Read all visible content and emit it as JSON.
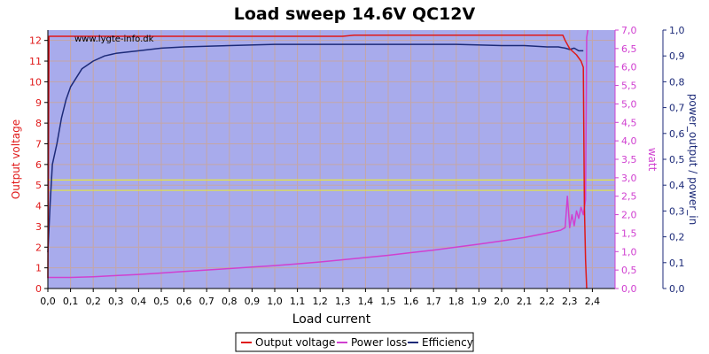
{
  "chart_data": {
    "type": "line",
    "title": "Load sweep 14.6V QC12V",
    "watermark": "www.lygte-info.dk",
    "xlabel": "Load current",
    "ylabel_left": "Output voltage",
    "ylabel_right1": "watt",
    "ylabel_right2": "power_output / power_in",
    "xlim": [
      0,
      2.5
    ],
    "ylim_left": [
      0,
      12.5
    ],
    "ylim_right1": [
      0,
      7.0
    ],
    "ylim_right2": [
      0,
      1.0
    ],
    "x_ticks": [
      "0,0",
      "0,1",
      "0,2",
      "0,3",
      "0,4",
      "0,5",
      "0,6",
      "0,7",
      "0,8",
      "0,9",
      "1,0",
      "1,1",
      "1,2",
      "1,3",
      "1,4",
      "1,5",
      "1,6",
      "1,7",
      "1,8",
      "1,9",
      "2,0",
      "2,1",
      "2,2",
      "2,3",
      "2,4"
    ],
    "y_left_ticks": [
      "0",
      "1",
      "2",
      "3",
      "4",
      "5",
      "6",
      "7",
      "8",
      "9",
      "10",
      "11",
      "12"
    ],
    "y_right1_ticks": [
      "0,0",
      "0,5",
      "1,0",
      "1,5",
      "2,0",
      "2,5",
      "3,0",
      "3,5",
      "4,0",
      "4,5",
      "5,0",
      "5,5",
      "6,0",
      "6,5",
      "7,0"
    ],
    "y_right2_ticks": [
      "0,0",
      "0,1",
      "0,2",
      "0,3",
      "0,4",
      "0,5",
      "0,6",
      "0,7",
      "0,8",
      "0,9",
      "1,0"
    ],
    "reference_lines_left": [
      4.75,
      5.25
    ],
    "colors": {
      "plot_bg": "#a8abec",
      "grid": "#c4a6a6",
      "output_voltage": "#e01818",
      "power_loss": "#d040d0",
      "efficiency": "#1c2a78",
      "reference": "#e6e63a",
      "left_axis": "#e01818",
      "right1_axis": "#d040d0",
      "right2_axis": "#1c2a78"
    },
    "series": [
      {
        "name": "Output voltage",
        "axis": "left",
        "color": "#e01818",
        "x": [
          0,
          0.005,
          0.1,
          0.5,
          1.0,
          1.3,
          1.35,
          2.0,
          2.27,
          2.28,
          2.3,
          2.33,
          2.35,
          2.36,
          2.365,
          2.37,
          2.375
        ],
        "y": [
          0.5,
          12.2,
          12.2,
          12.2,
          12.2,
          12.2,
          12.25,
          12.25,
          12.25,
          12.0,
          11.6,
          11.3,
          11.0,
          10.7,
          4.0,
          1.4,
          0
        ]
      },
      {
        "name": "Power loss",
        "axis": "right1",
        "color": "#d040d0",
        "x": [
          0,
          0.1,
          0.2,
          0.3,
          0.4,
          0.5,
          0.6,
          0.7,
          0.8,
          0.9,
          1.0,
          1.1,
          1.2,
          1.3,
          1.4,
          1.5,
          1.6,
          1.7,
          1.8,
          1.9,
          2.0,
          2.1,
          2.2,
          2.26,
          2.28,
          2.29,
          2.3,
          2.31,
          2.32,
          2.33,
          2.34,
          2.35,
          2.36,
          2.37,
          2.375,
          2.38
        ],
        "y": [
          0.3,
          0.3,
          0.32,
          0.35,
          0.38,
          0.42,
          0.46,
          0.5,
          0.54,
          0.58,
          0.62,
          0.67,
          0.72,
          0.78,
          0.84,
          0.9,
          0.97,
          1.04,
          1.12,
          1.2,
          1.29,
          1.38,
          1.5,
          1.58,
          1.65,
          2.5,
          1.65,
          2.0,
          1.7,
          2.1,
          1.9,
          2.2,
          2.0,
          2.4,
          6.8,
          7.0
        ]
      },
      {
        "name": "Efficiency",
        "axis": "right2",
        "color": "#1c2a78",
        "x": [
          0,
          0.01,
          0.02,
          0.04,
          0.06,
          0.08,
          0.1,
          0.15,
          0.2,
          0.25,
          0.3,
          0.4,
          0.5,
          0.6,
          0.8,
          1.0,
          1.2,
          1.4,
          1.6,
          1.8,
          2.0,
          2.1,
          2.2,
          2.25,
          2.28,
          2.3,
          2.32,
          2.34,
          2.36
        ],
        "y": [
          0.14,
          0.33,
          0.48,
          0.56,
          0.66,
          0.73,
          0.78,
          0.85,
          0.88,
          0.9,
          0.91,
          0.92,
          0.93,
          0.935,
          0.94,
          0.945,
          0.945,
          0.945,
          0.945,
          0.945,
          0.94,
          0.94,
          0.935,
          0.935,
          0.93,
          0.925,
          0.93,
          0.92,
          0.92
        ]
      }
    ],
    "legend": {
      "position": "bottom-center",
      "items": [
        "Output voltage",
        "Power loss",
        "Efficiency"
      ]
    }
  }
}
